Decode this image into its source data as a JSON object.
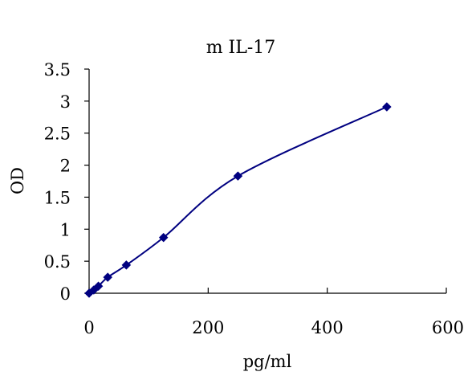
{
  "chart_data": {
    "type": "line",
    "title": "m IL-17",
    "xlabel": "pg/ml",
    "ylabel": "OD",
    "xlim": [
      0,
      600
    ],
    "ylim": [
      0,
      3.5
    ],
    "x_ticks": [
      0,
      200,
      400,
      600
    ],
    "x_tick_labels": [
      "0",
      "200",
      "400",
      "600"
    ],
    "y_ticks": [
      0,
      0.5,
      1,
      1.5,
      2,
      2.5,
      3,
      3.5
    ],
    "y_tick_labels": [
      "0",
      "0.5",
      "1",
      "1.5",
      "2",
      "2.5",
      "3",
      "3.5"
    ],
    "grid": false,
    "legend": false,
    "series": [
      {
        "x": [
          0,
          7.8,
          15.6,
          31.3,
          62.5,
          125,
          250,
          500
        ],
        "y": [
          0.0,
          0.05,
          0.11,
          0.25,
          0.44,
          0.87,
          1.83,
          2.91
        ],
        "line_color": "#000080",
        "marker": "diamond",
        "marker_color": "#000080",
        "smooth": true
      }
    ]
  }
}
